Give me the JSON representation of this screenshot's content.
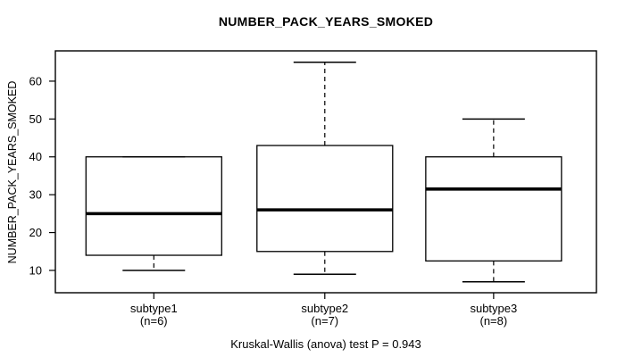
{
  "figure": {
    "title": "NUMBER_PACK_YEARS_SMOKED",
    "caption": "Kruskal-Wallis (anova) test P = 0.943"
  },
  "chart_data": {
    "type": "boxplot",
    "title": "NUMBER_PACK_YEARS_SMOKED",
    "ylabel": "NUMBER_PACK_YEARS_SMOKED",
    "xlabel": "",
    "ylim": [
      4.1,
      68.0
    ],
    "yticks": [
      10,
      20,
      30,
      40,
      50,
      60
    ],
    "grid": "off",
    "categories": [
      "subtype1",
      "subtype2",
      "subtype3"
    ],
    "group_sizes": [
      "(n=6)",
      "(n=7)",
      "(n=8)"
    ],
    "series": [
      {
        "name": "subtype1",
        "n": 6,
        "min": 10,
        "q1": 14,
        "median": 25,
        "q3": 40,
        "max": 40
      },
      {
        "name": "subtype2",
        "n": 7,
        "min": 9,
        "q1": 15,
        "median": 26,
        "q3": 43,
        "max": 65
      },
      {
        "name": "subtype3",
        "n": 8,
        "min": 7,
        "q1": 12.5,
        "median": 31.5,
        "q3": 40,
        "max": 50
      }
    ],
    "annotation": "Kruskal-Wallis (anova) test P = 0.943",
    "colors": {
      "line": "#000000",
      "box_fill": "#ffffff",
      "background": "#ffffff"
    }
  }
}
